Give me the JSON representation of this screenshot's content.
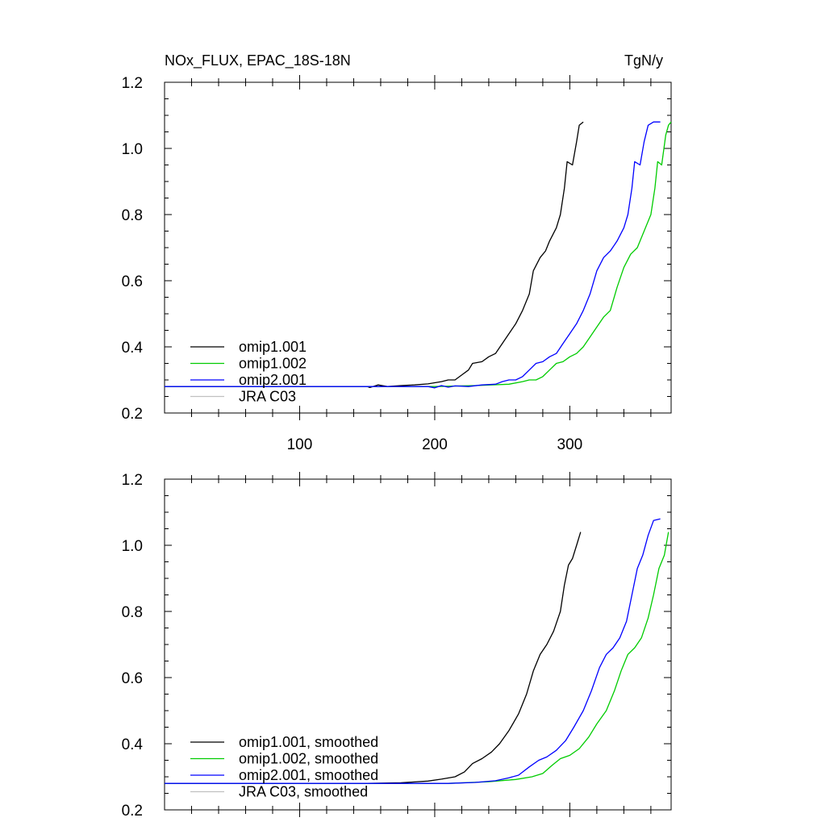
{
  "chart_data": [
    {
      "type": "line",
      "title": "NOx_FLUX, EPAC_18S-18N",
      "units": "TgN/y",
      "xlim": [
        0,
        375
      ],
      "ylim": [
        0.2,
        1.2
      ],
      "xticks": [
        100,
        200,
        300
      ],
      "xtick_labels": [
        "100",
        "200",
        "300"
      ],
      "yticks": [
        0.2,
        0.4,
        0.6,
        0.8,
        1.0,
        1.2
      ],
      "ytick_labels": [
        "0.2",
        "0.4",
        "0.6",
        "0.8",
        "1.0",
        "1.2"
      ],
      "legend_position": "bottom-left",
      "series": [
        {
          "name": "omip1.001",
          "color": "#000000",
          "points": [
            [
              0,
              0.28
            ],
            [
              150,
              0.28
            ],
            [
              152,
              0.277
            ],
            [
              158,
              0.285
            ],
            [
              165,
              0.28
            ],
            [
              175,
              0.283
            ],
            [
              185,
              0.285
            ],
            [
              195,
              0.288
            ],
            [
              205,
              0.295
            ],
            [
              210,
              0.3
            ],
            [
              215,
              0.3
            ],
            [
              220,
              0.315
            ],
            [
              225,
              0.33
            ],
            [
              228,
              0.35
            ],
            [
              235,
              0.355
            ],
            [
              240,
              0.37
            ],
            [
              245,
              0.38
            ],
            [
              250,
              0.41
            ],
            [
              255,
              0.44
            ],
            [
              260,
              0.47
            ],
            [
              265,
              0.51
            ],
            [
              270,
              0.56
            ],
            [
              273,
              0.63
            ],
            [
              278,
              0.67
            ],
            [
              282,
              0.69
            ],
            [
              285,
              0.72
            ],
            [
              290,
              0.76
            ],
            [
              293,
              0.8
            ],
            [
              296,
              0.88
            ],
            [
              298,
              0.96
            ],
            [
              302,
              0.95
            ],
            [
              305,
              1.02
            ],
            [
              307,
              1.07
            ],
            [
              310,
              1.08
            ]
          ]
        },
        {
          "name": "omip1.002",
          "color": "#00cc00",
          "points": [
            [
              0,
              0.28
            ],
            [
              200,
              0.28
            ],
            [
              230,
              0.283
            ],
            [
              255,
              0.287
            ],
            [
              265,
              0.295
            ],
            [
              270,
              0.3
            ],
            [
              275,
              0.3
            ],
            [
              280,
              0.31
            ],
            [
              285,
              0.33
            ],
            [
              290,
              0.35
            ],
            [
              295,
              0.355
            ],
            [
              300,
              0.37
            ],
            [
              305,
              0.38
            ],
            [
              310,
              0.4
            ],
            [
              315,
              0.43
            ],
            [
              320,
              0.46
            ],
            [
              325,
              0.49
            ],
            [
              330,
              0.51
            ],
            [
              335,
              0.58
            ],
            [
              340,
              0.64
            ],
            [
              345,
              0.68
            ],
            [
              350,
              0.7
            ],
            [
              355,
              0.75
            ],
            [
              360,
              0.8
            ],
            [
              363,
              0.88
            ],
            [
              365,
              0.96
            ],
            [
              368,
              0.95
            ],
            [
              371,
              1.04
            ],
            [
              373,
              1.07
            ],
            [
              375,
              1.08
            ]
          ]
        },
        {
          "name": "omip2.001",
          "color": "#0000ff",
          "points": [
            [
              0,
              0.28
            ],
            [
              195,
              0.28
            ],
            [
              200,
              0.276
            ],
            [
              205,
              0.283
            ],
            [
              210,
              0.278
            ],
            [
              215,
              0.282
            ],
            [
              225,
              0.28
            ],
            [
              235,
              0.285
            ],
            [
              245,
              0.287
            ],
            [
              250,
              0.295
            ],
            [
              255,
              0.3
            ],
            [
              260,
              0.3
            ],
            [
              265,
              0.31
            ],
            [
              270,
              0.33
            ],
            [
              275,
              0.35
            ],
            [
              280,
              0.355
            ],
            [
              285,
              0.37
            ],
            [
              290,
              0.38
            ],
            [
              295,
              0.41
            ],
            [
              300,
              0.44
            ],
            [
              305,
              0.47
            ],
            [
              310,
              0.51
            ],
            [
              315,
              0.56
            ],
            [
              320,
              0.63
            ],
            [
              325,
              0.67
            ],
            [
              330,
              0.69
            ],
            [
              335,
              0.72
            ],
            [
              340,
              0.76
            ],
            [
              343,
              0.8
            ],
            [
              346,
              0.88
            ],
            [
              348,
              0.96
            ],
            [
              352,
              0.95
            ],
            [
              355,
              1.02
            ],
            [
              358,
              1.07
            ],
            [
              362,
              1.08
            ],
            [
              367,
              1.08
            ]
          ]
        },
        {
          "name": "JRA C03",
          "color": "#c0c0c0",
          "points": []
        }
      ]
    },
    {
      "type": "line",
      "title": "",
      "units": "",
      "xlim": [
        0,
        375
      ],
      "ylim": [
        0.2,
        1.2
      ],
      "xticks": [
        100,
        200,
        300
      ],
      "xtick_labels": [],
      "yticks": [
        0.2,
        0.4,
        0.6,
        0.8,
        1.0,
        1.2
      ],
      "ytick_labels": [
        "0.2",
        "0.4",
        "0.6",
        "0.8",
        "1.0",
        "1.2"
      ],
      "legend_position": "bottom-left",
      "series": [
        {
          "name": "omip1.001, smoothed",
          "color": "#000000",
          "points": [
            [
              0,
              0.28
            ],
            [
              150,
              0.28
            ],
            [
              175,
              0.282
            ],
            [
              195,
              0.287
            ],
            [
              205,
              0.293
            ],
            [
              215,
              0.3
            ],
            [
              222,
              0.315
            ],
            [
              228,
              0.34
            ],
            [
              235,
              0.355
            ],
            [
              242,
              0.375
            ],
            [
              248,
              0.4
            ],
            [
              255,
              0.44
            ],
            [
              262,
              0.49
            ],
            [
              268,
              0.55
            ],
            [
              273,
              0.62
            ],
            [
              278,
              0.67
            ],
            [
              283,
              0.7
            ],
            [
              288,
              0.74
            ],
            [
              293,
              0.8
            ],
            [
              296,
              0.88
            ],
            [
              299,
              0.94
            ],
            [
              302,
              0.96
            ],
            [
              305,
              1.0
            ],
            [
              308,
              1.04
            ]
          ]
        },
        {
          "name": "omip1.002, smoothed",
          "color": "#00cc00",
          "points": [
            [
              0,
              0.28
            ],
            [
              210,
              0.28
            ],
            [
              240,
              0.285
            ],
            [
              260,
              0.292
            ],
            [
              272,
              0.3
            ],
            [
              280,
              0.31
            ],
            [
              287,
              0.335
            ],
            [
              293,
              0.355
            ],
            [
              300,
              0.365
            ],
            [
              307,
              0.385
            ],
            [
              314,
              0.42
            ],
            [
              320,
              0.46
            ],
            [
              327,
              0.5
            ],
            [
              333,
              0.56
            ],
            [
              338,
              0.62
            ],
            [
              343,
              0.67
            ],
            [
              348,
              0.69
            ],
            [
              353,
              0.72
            ],
            [
              358,
              0.78
            ],
            [
              362,
              0.85
            ],
            [
              366,
              0.93
            ],
            [
              370,
              0.97
            ],
            [
              373,
              1.04
            ]
          ]
        },
        {
          "name": "omip2.001, smoothed",
          "color": "#0000ff",
          "points": [
            [
              0,
              0.28
            ],
            [
              195,
              0.28
            ],
            [
              210,
              0.28
            ],
            [
              230,
              0.283
            ],
            [
              245,
              0.288
            ],
            [
              255,
              0.297
            ],
            [
              262,
              0.305
            ],
            [
              270,
              0.33
            ],
            [
              277,
              0.35
            ],
            [
              283,
              0.36
            ],
            [
              290,
              0.38
            ],
            [
              297,
              0.41
            ],
            [
              303,
              0.45
            ],
            [
              310,
              0.5
            ],
            [
              316,
              0.56
            ],
            [
              322,
              0.63
            ],
            [
              327,
              0.67
            ],
            [
              332,
              0.69
            ],
            [
              337,
              0.72
            ],
            [
              342,
              0.77
            ],
            [
              346,
              0.85
            ],
            [
              350,
              0.93
            ],
            [
              354,
              0.97
            ],
            [
              358,
              1.03
            ],
            [
              362,
              1.075
            ],
            [
              367,
              1.08
            ]
          ]
        },
        {
          "name": "JRA C03, smoothed",
          "color": "#c0c0c0",
          "points": []
        }
      ]
    }
  ]
}
